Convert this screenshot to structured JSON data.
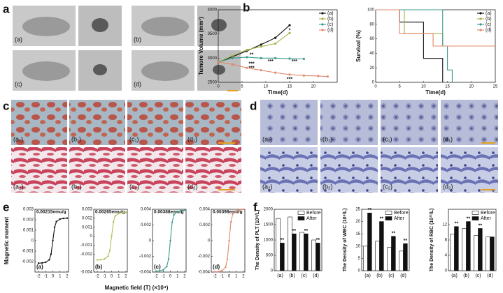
{
  "panel_labels": [
    "a",
    "b",
    "c",
    "d",
    "e",
    "f"
  ],
  "photos": {
    "a": [
      "(a)",
      "(b)",
      "(c)",
      "(d)"
    ],
    "c": [
      "(a₁)",
      "(b₁)",
      "(c₁)",
      "(d₁)",
      "(a₂)",
      "(b₂)",
      "(c₂)",
      "(d₂)"
    ],
    "d": [
      "(a₁)",
      "(b₁)",
      "(c₁)",
      "(d₁)",
      "(a₂)",
      "(b₂)",
      "(c₂)",
      "(d₂)"
    ]
  },
  "panel_e": {
    "ylabel": "Magnetic moment",
    "xlabel": "Magnetic field (T) (×10⁴)"
  },
  "chart_data": [
    {
      "type": "line",
      "ylabel": "Tumore Volume (mm³)",
      "xlabel": "Time(d)",
      "xlim": [
        0,
        25
      ],
      "xticks": [
        0,
        5,
        10,
        15,
        20
      ],
      "ylim": [
        2500,
        4000
      ],
      "yticks": [
        2500,
        3000,
        3500,
        4000
      ],
      "legend": "top-right",
      "series": [
        {
          "name": "(a)",
          "color": "#111111",
          "x": [
            0,
            3,
            6,
            9,
            12,
            15
          ],
          "values": [
            2920,
            3030,
            3150,
            3280,
            3420,
            3680
          ]
        },
        {
          "name": "(b)",
          "color": "#a9b34a",
          "x": [
            0,
            3,
            6,
            9,
            12,
            15
          ],
          "values": [
            2920,
            3050,
            3170,
            3240,
            3300,
            3520
          ]
        },
        {
          "name": "(c)",
          "color": "#3a9b8e",
          "x": [
            0,
            3,
            6,
            9,
            12,
            15,
            18
          ],
          "values": [
            2920,
            3000,
            3020,
            3000,
            3000,
            2990,
            2985
          ]
        },
        {
          "name": "(d)",
          "color": "#e0896a",
          "x": [
            0,
            3,
            6,
            9,
            12,
            15,
            18,
            21,
            23
          ],
          "values": [
            2920,
            2870,
            2800,
            2750,
            2700,
            2660,
            2640,
            2630,
            2620
          ]
        }
      ],
      "annotations": [
        {
          "text": "*",
          "x": 15,
          "y": 3570
        },
        {
          "text": "**",
          "x": 7,
          "y": 3070
        },
        {
          "text": "***",
          "x": 7,
          "y": 2880
        },
        {
          "text": "***",
          "x": 11,
          "y": 2930
        },
        {
          "text": "***",
          "x": 16,
          "y": 2930
        },
        {
          "text": "***",
          "x": 7,
          "y": 2790
        },
        {
          "text": "***",
          "x": 15,
          "y": 2560
        }
      ]
    },
    {
      "type": "step",
      "ylabel": "Survival (%)",
      "xlabel": "Time(d)",
      "xlim": [
        0,
        25
      ],
      "xticks": [
        0,
        5,
        10,
        15,
        20,
        25
      ],
      "ylim": [
        0,
        100
      ],
      "yticks": [
        0,
        20,
        40,
        60,
        80,
        100
      ],
      "legend": "top-right",
      "series": [
        {
          "name": "(a)",
          "color": "#111111",
          "x": [
            0,
            5,
            7,
            10,
            12,
            14
          ],
          "values": [
            100,
            83,
            83,
            33,
            33,
            0
          ]
        },
        {
          "name": "(b)",
          "color": "#a9b34a",
          "x": [
            0,
            6,
            12,
            14
          ],
          "values": [
            100,
            67,
            67,
            50
          ]
        },
        {
          "name": "(c)",
          "color": "#3a9b8e",
          "x": [
            0,
            14,
            15,
            16
          ],
          "values": [
            100,
            50,
            17,
            0
          ]
        },
        {
          "name": "(d)",
          "color": "#e0896a",
          "x": [
            0,
            5,
            12,
            25
          ],
          "values": [
            100,
            67,
            50,
            50
          ]
        }
      ]
    },
    {
      "type": "curve",
      "title": "0.00215emu/g",
      "label": "(a)",
      "xlim": [
        -2.5,
        2.2
      ],
      "xticks": [
        -2,
        -1,
        0,
        1,
        2
      ],
      "ylim": [
        -0.003,
        0.003
      ],
      "yticks": [
        -0.002,
        -0.001,
        0,
        0.001,
        0.002,
        0.003
      ],
      "x": [
        -2,
        -1.5,
        -1,
        -0.5,
        -0.25,
        0,
        0.25,
        0.5,
        1,
        1.5,
        2
      ],
      "series": [
        {
          "color": "#111111",
          "values": [
            -0.00215,
            -0.00213,
            -0.00206,
            -0.00183,
            -0.00129,
            0,
            0.00129,
            0.00183,
            0.00206,
            0.00213,
            0.00215
          ]
        }
      ]
    },
    {
      "type": "curve",
      "title": "0.00265emu/g",
      "label": "(b)",
      "xlim": [
        -2.5,
        2.2
      ],
      "xticks": [
        -2,
        -1,
        0,
        1,
        2
      ],
      "ylim": [
        -0.004,
        0.003
      ],
      "yticks": [
        -0.004,
        -0.002,
        -0.001,
        0,
        0.001,
        0.002,
        0.003
      ],
      "x": [
        -2,
        -1.5,
        -1,
        -0.5,
        -0.25,
        0,
        0.25,
        0.5,
        1,
        1.5,
        2
      ],
      "series": [
        {
          "color": "#b5bd5a",
          "values": [
            -0.00265,
            -0.00262,
            -0.00254,
            -0.00225,
            -0.00159,
            0,
            0.00159,
            0.00225,
            0.00254,
            0.00262,
            0.00265
          ]
        }
      ]
    },
    {
      "type": "curve",
      "title": "0.00388emu/g",
      "label": "(c)",
      "xlim": [
        -2.5,
        2.2
      ],
      "xticks": [
        -2,
        -1,
        0,
        1,
        2
      ],
      "ylim": [
        -0.004,
        0.004
      ],
      "yticks": [
        -0.004,
        -0.002,
        0,
        0.002,
        0.004
      ],
      "x": [
        -2,
        -1.5,
        -1,
        -0.5,
        -0.25,
        0,
        0.25,
        0.5,
        1,
        1.5,
        2
      ],
      "series": [
        {
          "color": "#3a9b8e",
          "values": [
            -0.00388,
            -0.00384,
            -0.00372,
            -0.0033,
            -0.00233,
            0,
            0.00233,
            0.0033,
            0.00372,
            0.00384,
            0.00388
          ]
        }
      ]
    },
    {
      "type": "curve",
      "title": "0.00398emu/g",
      "label": "(d)",
      "xlim": [
        -2.5,
        2.2
      ],
      "xticks": [
        -2,
        -1,
        0,
        1,
        2
      ],
      "ylim": [
        -0.004,
        0.004
      ],
      "yticks": [
        -0.004,
        -0.002,
        0,
        0.002,
        0.004
      ],
      "x": [
        -2,
        -1.5,
        -1,
        -0.5,
        -0.25,
        0,
        0.25,
        0.5,
        1,
        1.5,
        2
      ],
      "series": [
        {
          "color": "#e0896a",
          "values": [
            -0.00398,
            -0.00394,
            -0.00382,
            -0.00338,
            -0.00239,
            0,
            0.00239,
            0.00338,
            0.00382,
            0.00394,
            0.00398
          ]
        }
      ]
    },
    {
      "type": "bar",
      "ylabel": "The Density of PLT (10⁹/L)",
      "categories": [
        "(a)",
        "(b)",
        "(c)",
        "(d)"
      ],
      "ylim": [
        0,
        2000
      ],
      "yticks": [
        0,
        500,
        1000,
        1500,
        2000
      ],
      "legend": "top-right",
      "series": [
        {
          "name": "Before",
          "color": "#ffffff",
          "values": [
            1700,
            1750,
            1250,
            1000
          ]
        },
        {
          "name": "After",
          "color": "#111111",
          "values": [
            900,
            1200,
            1200,
            900
          ],
          "marks": [
            "**",
            "**",
            "**",
            "**"
          ]
        }
      ]
    },
    {
      "type": "bar",
      "ylabel": "The Density of WBC (10⁹/L)",
      "categories": [
        "(a)",
        "(b)",
        "(c)",
        "(d)"
      ],
      "ylim": [
        0,
        25
      ],
      "yticks": [
        0,
        5,
        10,
        15,
        20,
        25
      ],
      "legend": "top-right",
      "series": [
        {
          "name": "Before",
          "color": "#ffffff",
          "values": [
            10,
            12,
            9.5,
            8
          ]
        },
        {
          "name": "After",
          "color": "#111111",
          "values": [
            23.5,
            20,
            14,
            11
          ],
          "marks": [
            "**",
            "**",
            "**",
            "**"
          ]
        }
      ]
    },
    {
      "type": "bar",
      "ylabel": "The Density of RBC (10¹²/L)",
      "categories": [
        "(a)",
        "(b)",
        "(c)",
        "(d)"
      ],
      "ylim": [
        0,
        16
      ],
      "yticks": [
        0,
        4,
        8,
        12
      ],
      "legend": "top-right",
      "series": [
        {
          "name": "Before",
          "color": "#ffffff",
          "values": [
            9.5,
            11,
            9.2,
            8.8
          ]
        },
        {
          "name": "After",
          "color": "#111111",
          "values": [
            11.5,
            12.8,
            11,
            8.8
          ],
          "marks": [
            "**",
            "**",
            "**",
            null
          ]
        }
      ]
    }
  ]
}
